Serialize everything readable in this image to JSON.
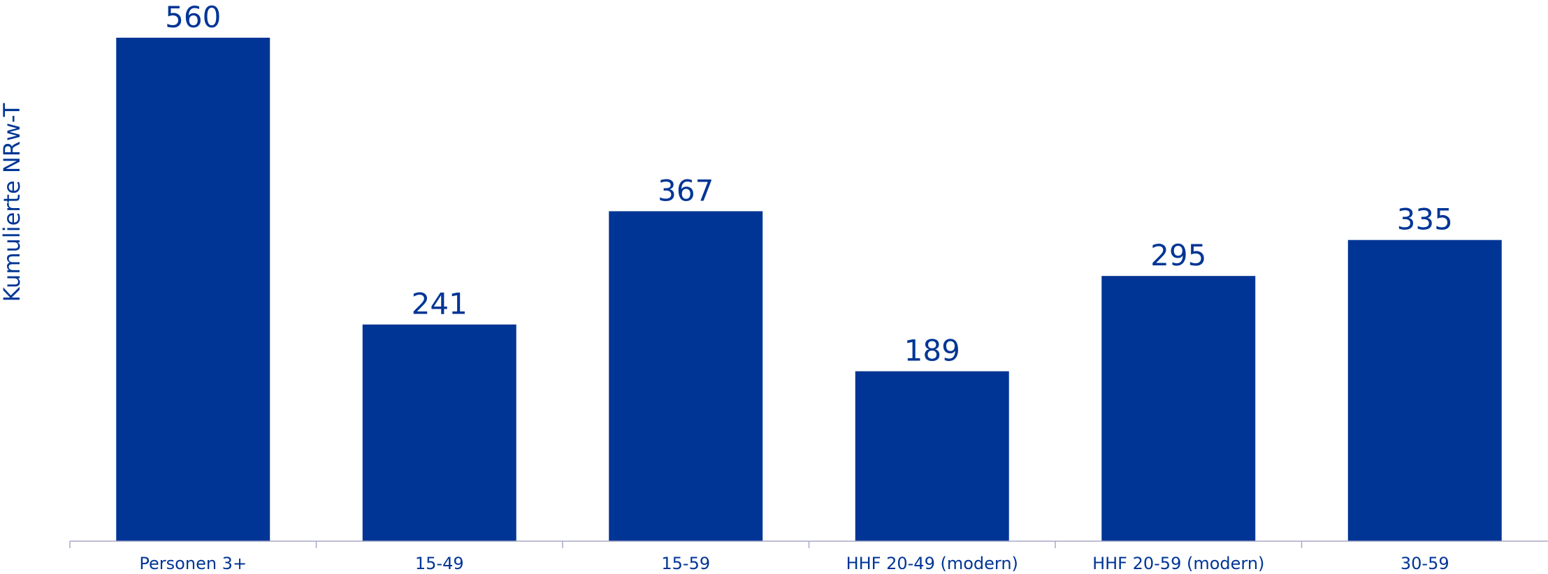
{
  "chart_data": {
    "type": "bar",
    "categories": [
      "Personen 3+",
      "15-49",
      "15-59",
      "HHF 20-49 (modern)",
      "HHF 20-59 (modern)",
      "30-59"
    ],
    "values": [
      560,
      241,
      367,
      189,
      295,
      335
    ],
    "data_labels": [
      "560",
      "241",
      "367",
      "189",
      "295",
      "335"
    ],
    "title": "",
    "xlabel": "",
    "ylabel": "Kumulierte NRw-T",
    "ylim": [
      0,
      600
    ],
    "grid": false,
    "legend": "none",
    "colors": {
      "bar": "#003595",
      "text": "#003595",
      "axis": "#a8a8c8"
    }
  }
}
